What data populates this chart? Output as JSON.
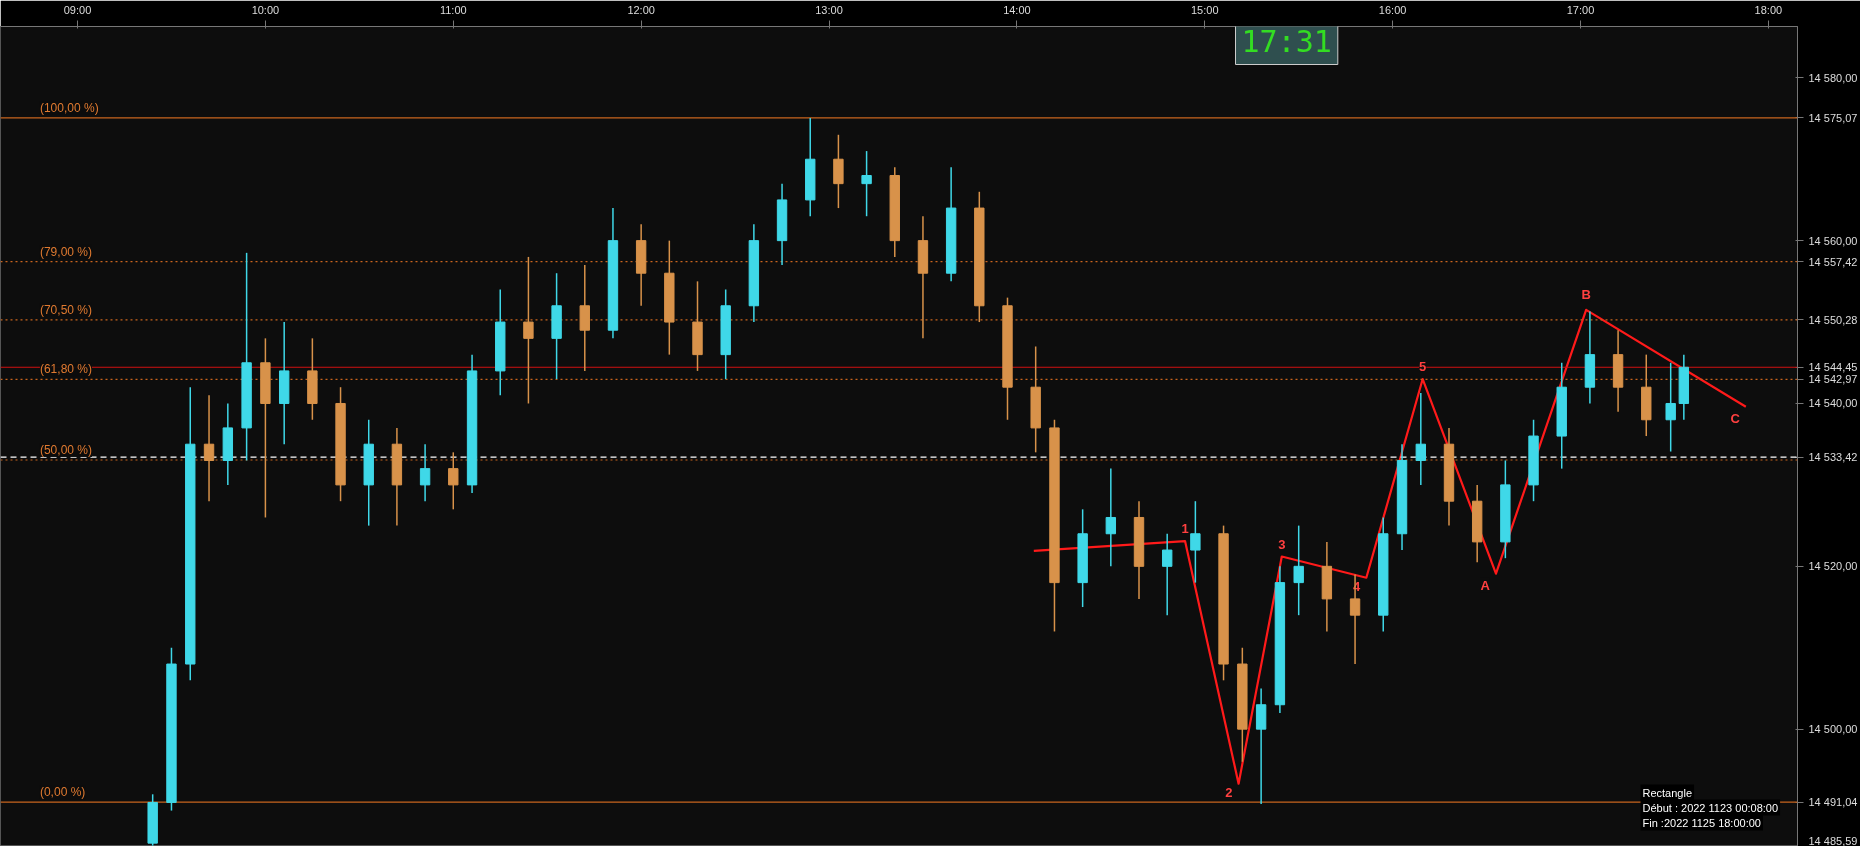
{
  "chart_data": {
    "type": "candlestick",
    "x": [
      9.4,
      9.5,
      9.6,
      9.7,
      9.8,
      9.9,
      10.0,
      10.1,
      10.25,
      10.4,
      10.55,
      10.7,
      10.85,
      11.0,
      11.1,
      11.25,
      11.4,
      11.55,
      11.7,
      11.85,
      12.0,
      12.15,
      12.3,
      12.45,
      12.6,
      12.75,
      12.9,
      13.05,
      13.2,
      13.35,
      13.5,
      13.65,
      13.8,
      13.95,
      14.1,
      14.2,
      14.35,
      14.5,
      14.65,
      14.8,
      14.95,
      15.1,
      15.2,
      15.3,
      15.4,
      15.5,
      15.65,
      15.8,
      15.95,
      16.05,
      16.15,
      16.3,
      16.45,
      16.6,
      16.75,
      16.9,
      17.05,
      17.2,
      17.35,
      17.48,
      17.55
    ],
    "ohlc": [
      [
        14486,
        14492,
        14485.7,
        14491
      ],
      [
        14491,
        14510,
        14490,
        14508
      ],
      [
        14508,
        14542,
        14506,
        14535
      ],
      [
        14535,
        14541,
        14528,
        14533
      ],
      [
        14533,
        14540,
        14530,
        14537
      ],
      [
        14537,
        14558.5,
        14533,
        14545
      ],
      [
        14545,
        14548,
        14526,
        14540
      ],
      [
        14540,
        14550,
        14535,
        14544
      ],
      [
        14544,
        14548,
        14538,
        14540
      ],
      [
        14540,
        14542,
        14528,
        14530
      ],
      [
        14530,
        14538,
        14525,
        14535
      ],
      [
        14535,
        14537,
        14525,
        14530
      ],
      [
        14530,
        14535,
        14528,
        14532
      ],
      [
        14532,
        14534,
        14527,
        14530
      ],
      [
        14530,
        14546,
        14529,
        14544
      ],
      [
        14544,
        14554,
        14541,
        14550
      ],
      [
        14550,
        14558,
        14540,
        14548
      ],
      [
        14548,
        14556,
        14543,
        14552
      ],
      [
        14552,
        14557,
        14544,
        14549
      ],
      [
        14549,
        14564,
        14548,
        14560
      ],
      [
        14560,
        14562,
        14552,
        14556
      ],
      [
        14556,
        14560,
        14546,
        14550
      ],
      [
        14550,
        14555,
        14544,
        14546
      ],
      [
        14546,
        14554,
        14543,
        14552
      ],
      [
        14552,
        14562,
        14550,
        14560
      ],
      [
        14560,
        14567,
        14557,
        14565
      ],
      [
        14565,
        14575.07,
        14563,
        14570
      ],
      [
        14570,
        14573,
        14564,
        14567
      ],
      [
        14567,
        14571,
        14563,
        14568
      ],
      [
        14568,
        14569,
        14558,
        14560
      ],
      [
        14560,
        14563,
        14548,
        14556
      ],
      [
        14556,
        14569,
        14555,
        14564
      ],
      [
        14564,
        14566,
        14550,
        14552
      ],
      [
        14552,
        14553,
        14538,
        14542
      ],
      [
        14542,
        14547,
        14534,
        14537
      ],
      [
        14537,
        14538,
        14512,
        14518
      ],
      [
        14518,
        14527,
        14515,
        14524
      ],
      [
        14524,
        14532,
        14520,
        14526
      ],
      [
        14526,
        14528,
        14516,
        14520
      ],
      [
        14520,
        14524,
        14514,
        14522
      ],
      [
        14522,
        14528,
        14518,
        14524
      ],
      [
        14524,
        14525,
        14506,
        14508
      ],
      [
        14508,
        14510,
        14496,
        14500
      ],
      [
        14500,
        14505,
        14490.8,
        14503
      ],
      [
        14503,
        14520,
        14502,
        14518
      ],
      [
        14518,
        14525,
        14514,
        14520
      ],
      [
        14520,
        14523,
        14512,
        14516
      ],
      [
        14516,
        14519,
        14508,
        14514
      ],
      [
        14514,
        14526,
        14512,
        14524
      ],
      [
        14524,
        14535,
        14522,
        14533
      ],
      [
        14533,
        14541.3,
        14530,
        14535
      ],
      [
        14535,
        14537,
        14525,
        14528
      ],
      [
        14528,
        14530,
        14520.5,
        14523
      ],
      [
        14523,
        14533,
        14521,
        14530
      ],
      [
        14530,
        14538,
        14528,
        14536
      ],
      [
        14536,
        14545,
        14532,
        14542
      ],
      [
        14542,
        14551.3,
        14540,
        14546
      ],
      [
        14546,
        14549,
        14539,
        14542
      ],
      [
        14542,
        14546,
        14536,
        14538
      ],
      [
        14538,
        14545,
        14534.1,
        14540
      ],
      [
        14540,
        14546,
        14538,
        14544.45
      ]
    ],
    "colors": [
      "#3fd8e8",
      "#3fd8e8",
      "#3fd8e8",
      "#d8924a",
      "#3fd8e8",
      "#3fd8e8",
      "#d8924a",
      "#3fd8e8",
      "#d8924a",
      "#d8924a",
      "#3fd8e8",
      "#d8924a",
      "#3fd8e8",
      "#d8924a",
      "#3fd8e8",
      "#3fd8e8",
      "#d8924a",
      "#3fd8e8",
      "#d8924a",
      "#3fd8e8",
      "#d8924a",
      "#d8924a",
      "#d8924a",
      "#3fd8e8",
      "#3fd8e8",
      "#3fd8e8",
      "#3fd8e8",
      "#d8924a",
      "#3fd8e8",
      "#d8924a",
      "#d8924a",
      "#3fd8e8",
      "#d8924a",
      "#d8924a",
      "#d8924a",
      "#d8924a",
      "#3fd8e8",
      "#3fd8e8",
      "#d8924a",
      "#3fd8e8",
      "#3fd8e8",
      "#d8924a",
      "#d8924a",
      "#3fd8e8",
      "#3fd8e8",
      "#3fd8e8",
      "#d8924a",
      "#d8924a",
      "#3fd8e8",
      "#3fd8e8",
      "#3fd8e8",
      "#d8924a",
      "#d8924a",
      "#3fd8e8",
      "#3fd8e8",
      "#3fd8e8",
      "#3fd8e8",
      "#d8924a",
      "#d8924a",
      "#3fd8e8",
      "#3fd8e8"
    ],
    "series": [
      {
        "type": "line",
        "color": "#ff1a1a",
        "x": [
          14.09,
          14.895,
          15.18,
          15.41,
          15.86,
          16.16,
          16.55,
          17.03,
          17.88
        ],
        "values": [
          14521.9,
          14523.1,
          14493.3,
          14521.2,
          14518.6,
          14543.0,
          14519.1,
          14551.5,
          14539.6
        ]
      }
    ],
    "xlim": [
      8.59,
      18.155
    ],
    "ylim": [
      14485.59,
      14586.3
    ],
    "xticks": [
      {
        "value": 9,
        "label": "09:00"
      },
      {
        "value": 10,
        "label": "10:00"
      },
      {
        "value": 11,
        "label": "11:00"
      },
      {
        "value": 12,
        "label": "12:00"
      },
      {
        "value": 13,
        "label": "13:00"
      },
      {
        "value": 14,
        "label": "14:00"
      },
      {
        "value": 15,
        "label": "15:00"
      },
      {
        "value": 16,
        "label": "16:00"
      },
      {
        "value": 17,
        "label": "17:00"
      },
      {
        "value": 18,
        "label": "18:00"
      }
    ],
    "yticks": [
      {
        "value": 14485.59,
        "label": "14 485,59"
      },
      {
        "value": 14491.04,
        "label": "14 491,04"
      },
      {
        "value": 14500,
        "label": "14 500,00"
      },
      {
        "value": 14520,
        "label": "14 520,00"
      },
      {
        "value": 14533.42,
        "label": "14 533,42"
      },
      {
        "value": 14540,
        "label": "14 540,00"
      },
      {
        "value": 14542.97,
        "label": "14 542,97"
      },
      {
        "value": 14544.45,
        "label": "14 544,45"
      },
      {
        "value": 14550.28,
        "label": "14 550,28"
      },
      {
        "value": 14557.42,
        "label": "14 557,42"
      },
      {
        "value": 14560,
        "label": "14 560,00"
      },
      {
        "value": 14575.07,
        "label": "14 575,07"
      },
      {
        "value": 14580,
        "label": "14 580,00"
      }
    ],
    "ref_lines": [
      {
        "axis": "y",
        "value": 14575.07,
        "color": "#c8641e",
        "line_style": "solid"
      },
      {
        "axis": "y",
        "value": 14557.42,
        "color": "#c8641e",
        "line_style": "dotted"
      },
      {
        "axis": "y",
        "value": 14550.28,
        "color": "#c8641e",
        "line_style": "dotted"
      },
      {
        "axis": "y",
        "value": 14542.97,
        "color": "#c8641e",
        "line_style": "dotted"
      },
      {
        "axis": "y",
        "value": 14533.42,
        "color": "#ffffff",
        "line_style": "dashed"
      },
      {
        "axis": "y",
        "value": 14533.06,
        "color": "#c8641e",
        "line_style": "dotted"
      },
      {
        "axis": "y",
        "value": 14491.04,
        "color": "#c8641e",
        "line_style": "solid"
      },
      {
        "axis": "y",
        "value": 14544.45,
        "color": "#d01010",
        "line_style": "solid"
      }
    ],
    "annotations": [
      {
        "text": "(100,00 %)",
        "x": 8.8,
        "y": 14575.07
      },
      {
        "text": "(79,00 %)",
        "x": 8.8,
        "y": 14557.42
      },
      {
        "text": "(70,50 %)",
        "x": 8.8,
        "y": 14550.28
      },
      {
        "text": "(61,80 %)",
        "x": 8.8,
        "y": 14542.97
      },
      {
        "text": "(50,00 %)",
        "x": 8.8,
        "y": 14533.06
      },
      {
        "text": "(0,00 %)",
        "x": 8.8,
        "y": 14491.04
      },
      {
        "text": "1",
        "x": 14.895,
        "y": 14523.1
      },
      {
        "text": "2",
        "x": 15.18,
        "y": 14493.3
      },
      {
        "text": "3",
        "x": 15.41,
        "y": 14521.2
      },
      {
        "text": "4",
        "x": 15.86,
        "y": 14518.6
      },
      {
        "text": "5",
        "x": 16.16,
        "y": 14543.0
      },
      {
        "text": "A",
        "x": 16.55,
        "y": 14519.1
      },
      {
        "text": "B",
        "x": 17.03,
        "y": 14551.5
      },
      {
        "text": "C",
        "x": 17.88,
        "y": 14539.6
      },
      "17:31",
      "Rectangle",
      "Début : 2022 1123 00:08:00",
      "Fin :2022 1125 18:00:00"
    ]
  }
}
